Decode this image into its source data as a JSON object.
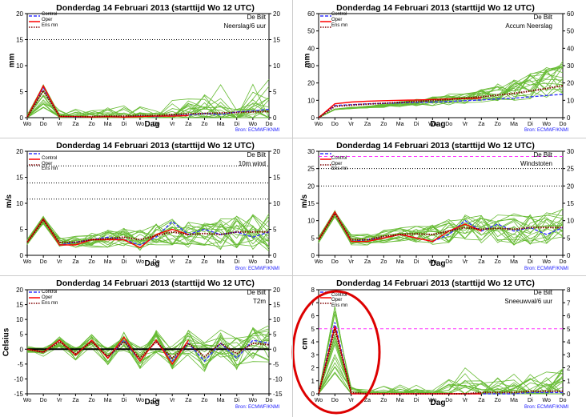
{
  "title": "Donderdag 14 Februari 2013  (starttijd  Wo 12 UTC)",
  "station": "De Bilt",
  "source": "Bron: ECMWF/KNMI",
  "xlabel": "Dag",
  "day_labels": [
    "Wo",
    "Do",
    "Vr",
    "Za",
    "Zo",
    "Ma",
    "Di",
    "Wo",
    "Do",
    "Vr",
    "Za",
    "Zo",
    "Ma",
    "Di",
    "Wo",
    "Do"
  ],
  "legend": [
    "Control",
    "Oper",
    "Ens mn"
  ],
  "colors": {
    "control": "#3333ff",
    "oper": "#ff0000",
    "ens_mean": "#800000",
    "members": "#66bb33",
    "threshold": "#ff33ff",
    "highlight_circle": "#dd0000"
  },
  "chart_data": [
    {
      "type": "line",
      "variable": "Neerslag/6 uur",
      "ylabel": "mm",
      "ylim": [
        0,
        20
      ],
      "yticks": [
        0,
        5,
        10,
        15,
        20
      ],
      "reference_lines": [
        {
          "y": 15,
          "style": "dotted",
          "color": "#000000"
        }
      ],
      "series": [
        {
          "name": "Control",
          "values": [
            0.1,
            5.8,
            0.2,
            0.1,
            0.1,
            0.2,
            0.1,
            0.3,
            0.2,
            0.4,
            0.5,
            0.8,
            0.6,
            1.1,
            1.3,
            1.6
          ]
        },
        {
          "name": "Oper",
          "values": [
            0.1,
            6.1,
            0.2,
            0.2,
            0.1,
            0.2,
            0.1,
            0.2,
            0.3,
            0.3,
            0.4
          ]
        },
        {
          "name": "Ens mn",
          "values": [
            0.1,
            5.2,
            0.3,
            0.2,
            0.2,
            0.3,
            0.3,
            0.4,
            0.4,
            0.6,
            0.7,
            0.8,
            0.9,
            1.0,
            1.1,
            1.2
          ]
        }
      ]
    },
    {
      "type": "line",
      "variable": "Accum Neerslag",
      "ylabel": "mm",
      "ylim": [
        0,
        60
      ],
      "yticks": [
        0,
        10,
        20,
        30,
        40,
        50,
        60
      ],
      "series": [
        {
          "name": "Control",
          "values": [
            0,
            7,
            7.5,
            8,
            8.2,
            8.5,
            8.8,
            9,
            9.3,
            9.8,
            10.2,
            10.8,
            11.2,
            12,
            12.8,
            13.5
          ]
        },
        {
          "name": "Oper",
          "values": [
            0,
            8,
            9,
            9.5,
            9.8,
            10,
            10.2,
            10.5,
            10.8,
            11,
            11.2
          ]
        },
        {
          "name": "Ens mn",
          "values": [
            0,
            6.5,
            7.2,
            7.8,
            8.3,
            8.8,
            9.3,
            9.9,
            10.5,
            11.3,
            12,
            13,
            14,
            15.3,
            16.8,
            18.5
          ]
        }
      ]
    },
    {
      "type": "line",
      "variable": "10m wind",
      "ylabel": "m/s",
      "ylim": [
        0,
        20
      ],
      "yticks": [
        0,
        5,
        10,
        15,
        20
      ],
      "reference_lines": [
        {
          "y": 10.8,
          "style": "dotted",
          "color": "#000000"
        },
        {
          "y": 13.9,
          "style": "dotted",
          "color": "#000000"
        },
        {
          "y": 17.2,
          "style": "dotted",
          "color": "#000000"
        }
      ],
      "series": [
        {
          "name": "Control",
          "values": [
            2.5,
            7,
            2,
            2.5,
            3,
            3.5,
            3,
            2,
            3.5,
            6.5,
            4,
            5,
            4,
            4.5,
            3.5,
            4.5
          ]
        },
        {
          "name": "Oper",
          "values": [
            2.5,
            7,
            2,
            2,
            3,
            3,
            3,
            1.5,
            4,
            5,
            4
          ]
        },
        {
          "name": "Ens mn",
          "values": [
            2.5,
            6.8,
            2.5,
            2.5,
            3,
            3.2,
            3.5,
            3,
            3.8,
            4.5,
            4,
            4.2,
            4,
            4.5,
            4.5,
            4.5
          ]
        }
      ]
    },
    {
      "type": "line",
      "variable": "Windstoten",
      "ylabel": "m/s",
      "ylim": [
        0,
        30
      ],
      "yticks": [
        0,
        5,
        10,
        15,
        20,
        25,
        30
      ],
      "reference_lines": [
        {
          "y": 20,
          "style": "dotted",
          "color": "#000000"
        },
        {
          "y": 25,
          "style": "dotted",
          "color": "#000000"
        },
        {
          "y": 28.5,
          "style": "dashed",
          "color": "#ff33ff"
        }
      ],
      "series": [
        {
          "name": "Control",
          "values": [
            4.5,
            12.5,
            4,
            4.5,
            5,
            6,
            5,
            4,
            6,
            10,
            7,
            9,
            7,
            8,
            6,
            8
          ]
        },
        {
          "name": "Oper",
          "values": [
            4.5,
            12.5,
            4,
            4,
            5,
            6,
            5,
            4,
            7,
            9,
            7
          ]
        },
        {
          "name": "Ens mn",
          "values": [
            4.5,
            12,
            4.5,
            4.5,
            5.5,
            6,
            6.2,
            6,
            7,
            8,
            7.5,
            7.8,
            7.5,
            8,
            8,
            8
          ]
        }
      ]
    },
    {
      "type": "line",
      "variable": "T2m",
      "ylabel": "Celsius",
      "ylim": [
        -15,
        20
      ],
      "yticks": [
        -15,
        -10,
        -5,
        0,
        5,
        10,
        15,
        20
      ],
      "reference_lines": [
        {
          "y": 0,
          "style": "solid",
          "color": "#000000"
        }
      ],
      "series": [
        {
          "name": "Control",
          "values": [
            0,
            -1,
            3,
            -2,
            3,
            -3,
            3,
            -4,
            3,
            -4,
            2,
            -4,
            2,
            -3,
            3,
            2
          ]
        },
        {
          "name": "Oper",
          "values": [
            0,
            -1,
            3,
            -2,
            3,
            -3,
            4,
            -4,
            3,
            -5,
            3
          ]
        },
        {
          "name": "Ens mn",
          "values": [
            0,
            -1,
            2.5,
            -1.5,
            2.5,
            -2.5,
            2.5,
            -3,
            2.5,
            -3,
            2,
            -2.5,
            2,
            -1.5,
            2,
            1.5
          ]
        }
      ]
    },
    {
      "type": "line",
      "variable": "Sneeuwval/6 uur",
      "ylabel": "cm",
      "ylim": [
        0,
        8
      ],
      "yticks": [
        0,
        1,
        2,
        3,
        4,
        5,
        6,
        7,
        8
      ],
      "reference_lines": [
        {
          "y": 5,
          "style": "dashed",
          "color": "#ff33ff"
        }
      ],
      "highlight": "circled",
      "series": [
        {
          "name": "Control",
          "values": [
            0,
            5.5,
            0,
            0,
            0,
            0,
            0,
            0,
            0,
            0,
            0,
            0,
            0,
            0.1,
            0.1,
            0.1
          ]
        },
        {
          "name": "Oper",
          "values": [
            0,
            5.2,
            0,
            0,
            0,
            0,
            0,
            0,
            0,
            0,
            0
          ]
        },
        {
          "name": "Ens mn",
          "values": [
            0,
            5,
            0.1,
            0,
            0,
            0,
            0,
            0,
            0,
            0,
            0.1,
            0.1,
            0.1,
            0.2,
            0.2,
            0.2
          ]
        }
      ]
    }
  ]
}
